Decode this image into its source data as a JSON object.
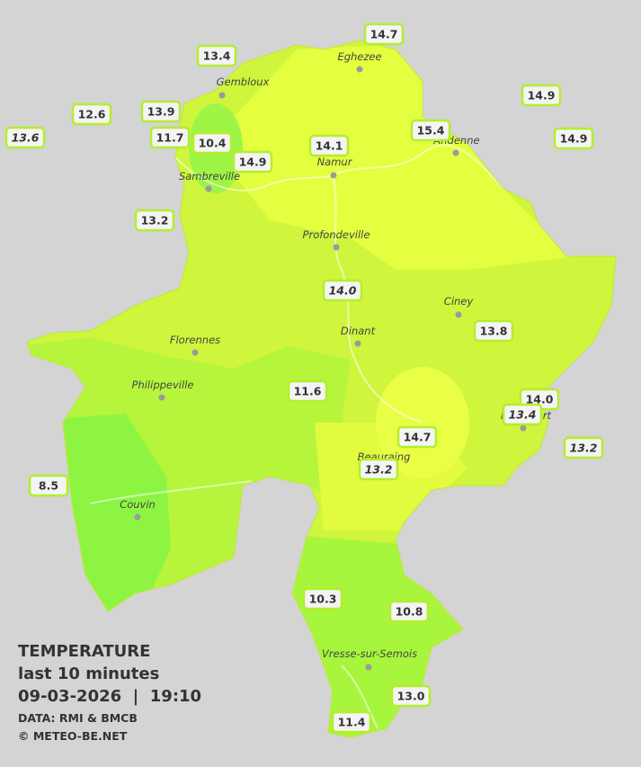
{
  "legend": {
    "title": "TEMPERATURE",
    "subtitle": "last 10 minutes",
    "datetime": "09-03-2026  |  19:10",
    "source": "DATA: RMI & BMCB",
    "copyright": "© METEO-BE.NET"
  },
  "cities": [
    "Eghezee",
    "Gembloux",
    "Andenne",
    "Namur",
    "Sambreville",
    "Profondeville",
    "Ciney",
    "Dinant",
    "Florennes",
    "Philippeville",
    "Beauraing",
    "Rochefort",
    "Couvin",
    "Vresse-sur-Semois"
  ],
  "stations": [
    "14.7",
    "13.4",
    "14.9",
    "12.6",
    "13.9",
    "13.6",
    "11.7",
    "10.4",
    "15.4",
    "14.9",
    "14.1",
    "14.9",
    "13.2",
    "14.0",
    "13.8",
    "11.6",
    "14.0",
    "13.4",
    "13.2",
    "14.7",
    "13.2",
    "8.5",
    "10.3",
    "10.8",
    "13.0",
    "11.4"
  ]
}
